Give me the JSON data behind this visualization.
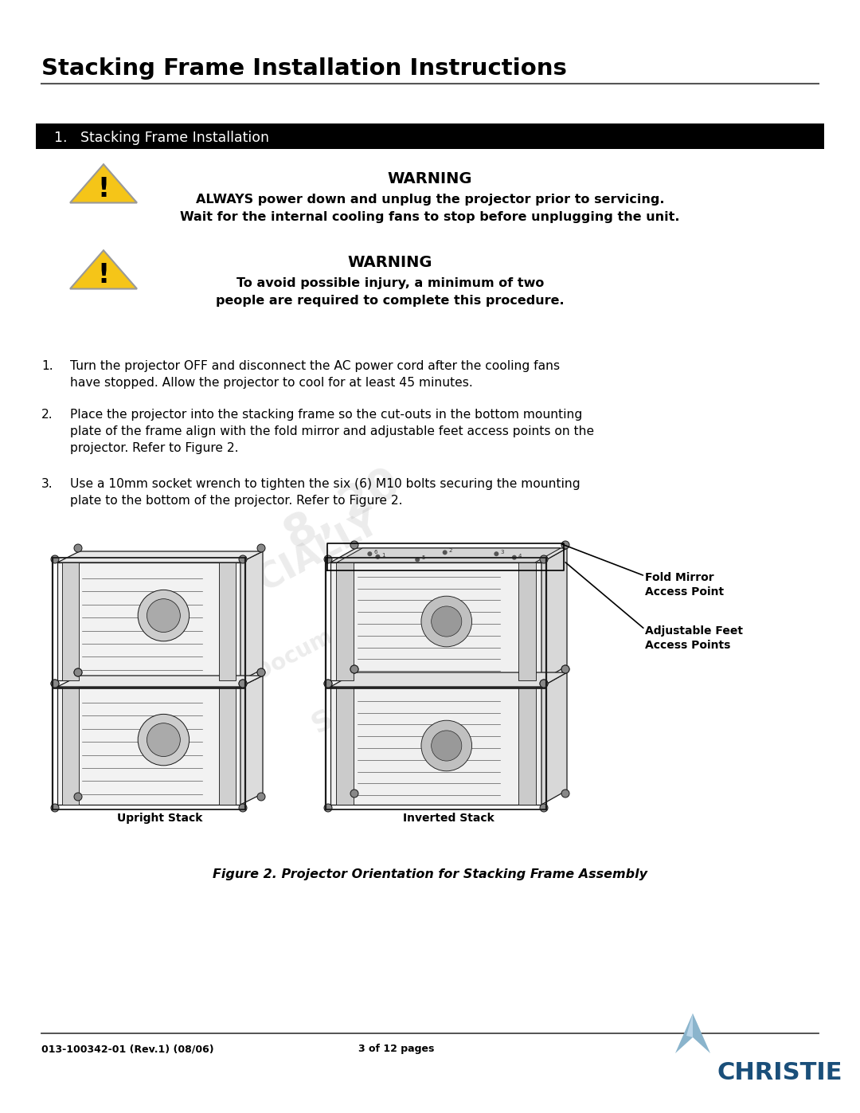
{
  "title": "Stacking Frame Installation Instructions",
  "section_header": "1.   Stacking Frame Installation",
  "warning1_title": "WARNING",
  "warning1_text": "ALWAYS power down and unplug the projector prior to servicing.\nWait for the internal cooling fans to stop before unplugging the unit.",
  "warning2_title": "WARNING",
  "warning2_text": "To avoid possible injury, a minimum of two\npeople are required to complete this procedure.",
  "step1": "Turn the projector OFF and disconnect the AC power cord after the cooling fans\nhave stopped. Allow the projector to cool for at least 45 minutes.",
  "step2": "Place the projector into the stacking frame so the cut-outs in the bottom mounting\nplate of the frame align with the fold mirror and adjustable feet access points on the\nprojector. Refer to Figure 2.",
  "step3": "Use a 10mm socket wrench to tighten the six (6) M10 bolts securing the mounting\nplate to the bottom of the projector. Refer to Figure 2.",
  "fig_caption": "Figure 2. Projector Orientation for Stacking Frame Assembly",
  "label_upright": "Upright Stack",
  "label_inverted": "Inverted Stack",
  "label_fold_mirror": "Fold Mirror\nAccess Point",
  "label_adj_feet": "Adjustable Feet\nAccess Points",
  "footer_left": "013-100342-01 (Rev.1) (08/06)",
  "footer_center": "3 of 12 pages",
  "bg_color": "#ffffff",
  "header_bar_color": "#000000",
  "header_text_color": "#ffffff",
  "title_color": "#000000",
  "body_text_color": "#000000",
  "triangle_fill": "#f5c518",
  "triangle_edge": "#999999",
  "footer_line_color": "#555555",
  "christie_blue": "#1a4f7a",
  "christie_light_blue": "#8ab4cc"
}
